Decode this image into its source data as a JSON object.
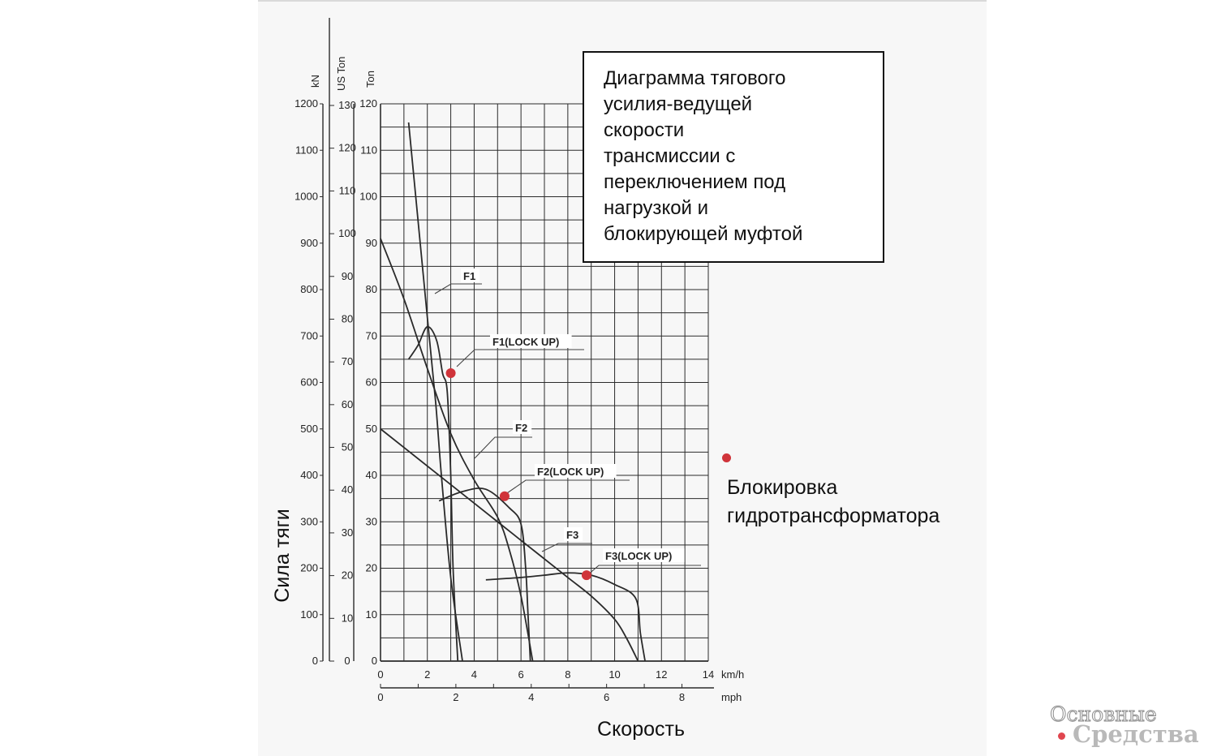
{
  "title_box": {
    "lines": [
      "Диаграмма тягового",
      "усилия-ведущей",
      "скорости",
      "трансмиссии с",
      "переключением под",
      "нагрузкой и",
      "блокирующей муфтой"
    ]
  },
  "y_axis_title": "Сила тяги",
  "x_axis_title": "Скорость",
  "legend": {
    "marker_color": "#d0343a",
    "label": "Блокировка\nгидротрансформатора"
  },
  "watermark": {
    "line1": "Основные",
    "line2": "Средства",
    "dot_color": "#e0464f"
  },
  "chart_data": {
    "type": "line",
    "grid": true,
    "x_axes": [
      {
        "unit": "km/h",
        "ticks": [
          "0",
          "2",
          "4",
          "6",
          "8",
          "10",
          "12",
          "14"
        ],
        "range": [
          0,
          14
        ]
      },
      {
        "unit": "mph",
        "ticks": [
          "0",
          "2",
          "4",
          "6",
          "8"
        ],
        "range": [
          0,
          8.7
        ]
      }
    ],
    "y_axes": [
      {
        "unit": "kN",
        "ticks": [
          "0",
          "100",
          "200",
          "300",
          "400",
          "500",
          "600",
          "700",
          "800",
          "900",
          "1000",
          "1100",
          "1200"
        ],
        "range": [
          0,
          1200
        ]
      },
      {
        "unit": "US Ton",
        "ticks": [
          "0",
          "10",
          "20",
          "30",
          "40",
          "50",
          "60",
          "70",
          "80",
          "90",
          "100",
          "110",
          "120",
          "130"
        ],
        "range": [
          0,
          130
        ]
      },
      {
        "unit": "Ton",
        "ticks": [
          "0",
          "10",
          "20",
          "30",
          "40",
          "50",
          "60",
          "70",
          "80",
          "90",
          "100",
          "110",
          "120"
        ],
        "range": [
          0,
          120
        ]
      }
    ],
    "series": [
      {
        "name": "F1",
        "x_unit": "km/h",
        "y_unit": "Ton",
        "x": [
          1.2,
          1.6,
          2.0,
          2.35,
          2.6,
          3.0,
          3.5
        ],
        "y": [
          116,
          95,
          74,
          56,
          40,
          18,
          0
        ]
      },
      {
        "name": "F1(LOCK UP)",
        "x_unit": "km/h",
        "y_unit": "Ton",
        "x": [
          1.2,
          1.6,
          2.0,
          2.4,
          2.65,
          2.85,
          3.0,
          3.1,
          3.3
        ],
        "y": [
          65,
          68,
          72,
          69,
          62,
          58,
          40,
          20,
          0
        ]
      },
      {
        "name": "F2",
        "x_unit": "km/h",
        "y_unit": "Ton",
        "x": [
          0.0,
          1.0,
          2.0,
          3.0,
          4.0,
          5.0,
          5.5,
          6.0,
          6.5
        ],
        "y": [
          91,
          78,
          63,
          49,
          39,
          31,
          24,
          14,
          0
        ]
      },
      {
        "name": "F2(LOCK UP)",
        "x_unit": "km/h",
        "y_unit": "Ton",
        "x": [
          2.5,
          3.5,
          4.5,
          5.5,
          6.0,
          6.2,
          6.3,
          6.4
        ],
        "y": [
          34.5,
          36.5,
          37,
          33,
          29.5,
          20,
          10,
          0
        ]
      },
      {
        "name": "F3",
        "x_unit": "km/h",
        "y_unit": "Ton",
        "x": [
          0.0,
          2.0,
          4.0,
          6.0,
          8.0,
          9.0,
          10.0,
          10.5,
          11.0
        ],
        "y": [
          50,
          42,
          34,
          26,
          18,
          14,
          9,
          5,
          0
        ]
      },
      {
        "name": "F3(LOCK UP)",
        "x_unit": "km/h",
        "y_unit": "Ton",
        "x": [
          4.5,
          6.0,
          7.0,
          8.0,
          9.0,
          10.0,
          10.9,
          11.1,
          11.3
        ],
        "y": [
          17.5,
          18,
          18.5,
          19,
          18.5,
          16.5,
          13.5,
          6,
          0
        ]
      }
    ],
    "lockup_points": [
      {
        "label": "F1(LOCK UP)",
        "x": 3.0,
        "y": 62
      },
      {
        "label": "F2(LOCK UP)",
        "x": 5.3,
        "y": 35.5
      },
      {
        "label": "F3(LOCK UP)",
        "x": 8.8,
        "y": 18.5
      }
    ]
  }
}
